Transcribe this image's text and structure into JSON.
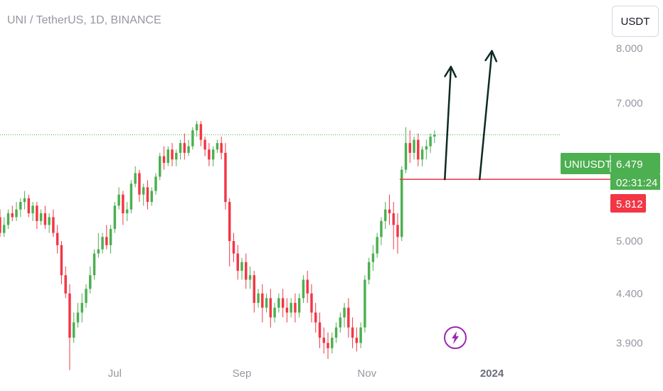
{
  "header": {
    "title": "UNI / TetherUS, 1D, BINANCE"
  },
  "toolbar": {
    "currency_label": "USDT"
  },
  "price_tag": {
    "symbol": "UNIUSDT",
    "price": "6.479",
    "countdown": "02:31:24",
    "level": "5.812"
  },
  "colors": {
    "up": "#4caf50",
    "down": "#f23645",
    "arrow": "#0d2a24",
    "grid_line": "#4caf50",
    "level_line": "#f23645",
    "bolt": "#9c27b0"
  },
  "icons": {
    "event_marker": "lightning-bolt-icon"
  },
  "chart_data": {
    "type": "candlestick",
    "title": "UNI / TetherUS, 1D, BINANCE",
    "symbol": "UNIUSDT",
    "scale": "log",
    "ylim": [
      3.75,
      9.0
    ],
    "y_ticks": [
      {
        "value": 3.9,
        "label": "3.900"
      },
      {
        "value": 4.4,
        "label": "4.400"
      },
      {
        "value": 5.0,
        "label": "5.000"
      },
      {
        "value": 7.0,
        "label": "7.000"
      },
      {
        "value": 8.0,
        "label": "8.000"
      }
    ],
    "x_ticks": [
      {
        "date": "2023-07-01",
        "label": "Jul",
        "bold": false
      },
      {
        "date": "2023-09-01",
        "label": "Sep",
        "bold": false
      },
      {
        "date": "2023-11-01",
        "label": "Nov",
        "bold": false
      },
      {
        "date": "2024-01-01",
        "label": "2024",
        "bold": true
      }
    ],
    "xlim": [
      "2023-05-06",
      "2024-02-25"
    ],
    "last_price": 6.479,
    "horizontal_level": {
      "value": 5.812,
      "from": "2023-11-17",
      "to": "2024-02-25"
    },
    "arrows": [
      {
        "from": [
          "2023-12-09",
          5.812
        ],
        "to": [
          "2023-12-12",
          7.65
        ]
      },
      {
        "from": [
          "2023-12-26",
          5.812
        ],
        "to": [
          "2024-01-01",
          7.95
        ]
      }
    ],
    "event_marker_date": "2023-11-23",
    "candles": [
      [
        "2023-05-06",
        5.3,
        5.4,
        5.1,
        5.05
      ],
      [
        "2023-05-08",
        5.1,
        5.3,
        5.2,
        5.05
      ],
      [
        "2023-05-10",
        5.2,
        5.4,
        5.35,
        5.15
      ],
      [
        "2023-05-12",
        5.35,
        5.45,
        5.3,
        5.25
      ],
      [
        "2023-05-14",
        5.3,
        5.5,
        5.4,
        5.25
      ],
      [
        "2023-05-16",
        5.4,
        5.55,
        5.5,
        5.3
      ],
      [
        "2023-05-18",
        5.5,
        5.65,
        5.55,
        5.4
      ],
      [
        "2023-05-20",
        5.55,
        5.6,
        5.35,
        5.3
      ],
      [
        "2023-05-22",
        5.35,
        5.5,
        5.45,
        5.25
      ],
      [
        "2023-05-24",
        5.45,
        5.5,
        5.25,
        5.15
      ],
      [
        "2023-05-26",
        5.25,
        5.4,
        5.35,
        5.2
      ],
      [
        "2023-05-28",
        5.35,
        5.45,
        5.2,
        5.15
      ],
      [
        "2023-05-30",
        5.2,
        5.35,
        5.3,
        5.1
      ],
      [
        "2023-06-01",
        5.3,
        5.4,
        5.1,
        5.05
      ],
      [
        "2023-06-03",
        5.1,
        5.2,
        4.95,
        4.85
      ],
      [
        "2023-06-05",
        4.95,
        5.0,
        4.6,
        4.5
      ],
      [
        "2023-06-07",
        4.6,
        4.7,
        4.4,
        4.35
      ],
      [
        "2023-06-09",
        4.4,
        4.5,
        3.95,
        3.65
      ],
      [
        "2023-06-11",
        3.95,
        4.2,
        4.1,
        3.9
      ],
      [
        "2023-06-13",
        4.1,
        4.3,
        4.2,
        4.05
      ],
      [
        "2023-06-15",
        4.2,
        4.4,
        4.3,
        4.1
      ],
      [
        "2023-06-17",
        4.3,
        4.5,
        4.45,
        4.25
      ],
      [
        "2023-06-19",
        4.45,
        4.7,
        4.6,
        4.4
      ],
      [
        "2023-06-21",
        4.6,
        4.9,
        4.85,
        4.55
      ],
      [
        "2023-06-23",
        4.85,
        5.1,
        4.9,
        4.8
      ],
      [
        "2023-06-25",
        4.9,
        5.1,
        5.05,
        4.85
      ],
      [
        "2023-06-27",
        5.05,
        5.2,
        4.95,
        4.9
      ],
      [
        "2023-06-29",
        4.95,
        5.2,
        5.15,
        4.85
      ],
      [
        "2023-07-01",
        5.15,
        5.5,
        5.45,
        5.1
      ],
      [
        "2023-07-03",
        5.45,
        5.7,
        5.6,
        5.4
      ],
      [
        "2023-07-05",
        5.6,
        5.65,
        5.35,
        5.2
      ],
      [
        "2023-07-07",
        5.35,
        5.5,
        5.4,
        5.25
      ],
      [
        "2023-07-09",
        5.4,
        5.8,
        5.75,
        5.35
      ],
      [
        "2023-07-11",
        5.75,
        6.0,
        5.9,
        5.7
      ],
      [
        "2023-07-13",
        5.9,
        5.95,
        5.6,
        5.5
      ],
      [
        "2023-07-15",
        5.6,
        5.75,
        5.7,
        5.45
      ],
      [
        "2023-07-17",
        5.7,
        5.8,
        5.5,
        5.4
      ],
      [
        "2023-07-19",
        5.5,
        5.7,
        5.65,
        5.45
      ],
      [
        "2023-07-21",
        5.65,
        5.9,
        5.85,
        5.6
      ],
      [
        "2023-07-23",
        5.85,
        6.2,
        6.15,
        5.8
      ],
      [
        "2023-07-25",
        6.15,
        6.3,
        6.05,
        5.95
      ],
      [
        "2023-07-27",
        6.05,
        6.3,
        6.25,
        6.0
      ],
      [
        "2023-07-29",
        6.25,
        6.35,
        6.1,
        6.0
      ],
      [
        "2023-07-31",
        6.1,
        6.25,
        6.2,
        6.0
      ],
      [
        "2023-08-02",
        6.2,
        6.4,
        6.35,
        6.1
      ],
      [
        "2023-08-04",
        6.35,
        6.5,
        6.2,
        6.1
      ],
      [
        "2023-08-06",
        6.2,
        6.4,
        6.3,
        6.15
      ],
      [
        "2023-08-08",
        6.3,
        6.6,
        6.55,
        6.25
      ],
      [
        "2023-08-10",
        6.55,
        6.7,
        6.65,
        6.45
      ],
      [
        "2023-08-12",
        6.65,
        6.7,
        6.4,
        6.3
      ],
      [
        "2023-08-14",
        6.4,
        6.45,
        6.25,
        6.15
      ],
      [
        "2023-08-16",
        6.25,
        6.35,
        6.1,
        6.0
      ],
      [
        "2023-08-18",
        6.1,
        6.3,
        6.25,
        6.0
      ],
      [
        "2023-08-20",
        6.25,
        6.4,
        6.35,
        6.2
      ],
      [
        "2023-08-22",
        6.35,
        6.45,
        6.2,
        6.1
      ],
      [
        "2023-08-24",
        6.2,
        6.35,
        5.5,
        5.4
      ],
      [
        "2023-08-26",
        5.5,
        5.55,
        5.0,
        4.7
      ],
      [
        "2023-08-28",
        5.0,
        5.1,
        4.85,
        4.75
      ],
      [
        "2023-08-30",
        4.85,
        4.95,
        4.65,
        4.55
      ],
      [
        "2023-09-01",
        4.65,
        4.8,
        4.75,
        4.55
      ],
      [
        "2023-09-03",
        4.75,
        4.85,
        4.55,
        4.45
      ],
      [
        "2023-09-05",
        4.55,
        4.7,
        4.6,
        4.45
      ],
      [
        "2023-09-07",
        4.6,
        4.65,
        4.3,
        4.2
      ],
      [
        "2023-09-09",
        4.3,
        4.45,
        4.4,
        4.25
      ],
      [
        "2023-09-11",
        4.4,
        4.5,
        4.25,
        4.1
      ],
      [
        "2023-09-13",
        4.25,
        4.4,
        4.35,
        4.2
      ],
      [
        "2023-09-15",
        4.35,
        4.45,
        4.15,
        4.05
      ],
      [
        "2023-09-17",
        4.15,
        4.3,
        4.25,
        4.1
      ],
      [
        "2023-09-19",
        4.25,
        4.4,
        4.35,
        4.2
      ],
      [
        "2023-09-21",
        4.35,
        4.45,
        4.25,
        4.15
      ],
      [
        "2023-09-23",
        4.25,
        4.35,
        4.2,
        4.1
      ],
      [
        "2023-09-25",
        4.2,
        4.35,
        4.3,
        4.15
      ],
      [
        "2023-09-27",
        4.3,
        4.4,
        4.2,
        4.1
      ],
      [
        "2023-09-29",
        4.2,
        4.4,
        4.35,
        4.15
      ],
      [
        "2023-10-01",
        4.35,
        4.6,
        4.55,
        4.3
      ],
      [
        "2023-10-03",
        4.55,
        4.65,
        4.4,
        4.3
      ],
      [
        "2023-10-05",
        4.4,
        4.5,
        4.2,
        4.1
      ],
      [
        "2023-10-07",
        4.2,
        4.3,
        4.1,
        4.0
      ],
      [
        "2023-10-09",
        4.1,
        4.2,
        3.95,
        3.85
      ],
      [
        "2023-10-11",
        3.95,
        4.05,
        3.9,
        3.8
      ],
      [
        "2023-10-13",
        3.9,
        4.0,
        3.85,
        3.75
      ],
      [
        "2023-10-15",
        3.85,
        4.0,
        3.95,
        3.8
      ],
      [
        "2023-10-17",
        3.95,
        4.1,
        4.05,
        3.9
      ],
      [
        "2023-10-19",
        4.05,
        4.2,
        4.15,
        4.0
      ],
      [
        "2023-10-21",
        4.15,
        4.3,
        4.25,
        4.05
      ],
      [
        "2023-10-23",
        4.25,
        4.35,
        4.05,
        3.95
      ],
      [
        "2023-10-25",
        4.05,
        4.15,
        3.95,
        3.85
      ],
      [
        "2023-10-27",
        3.95,
        4.05,
        3.9,
        3.82
      ],
      [
        "2023-10-29",
        3.9,
        4.1,
        4.05,
        3.85
      ],
      [
        "2023-10-31",
        4.05,
        4.6,
        4.55,
        4.0
      ],
      [
        "2023-11-02",
        4.55,
        4.8,
        4.75,
        4.5
      ],
      [
        "2023-11-04",
        4.75,
        4.95,
        4.85,
        4.65
      ],
      [
        "2023-11-06",
        4.85,
        5.1,
        5.05,
        4.8
      ],
      [
        "2023-11-08",
        5.05,
        5.3,
        5.25,
        4.95
      ],
      [
        "2023-11-10",
        5.25,
        5.5,
        5.4,
        5.15
      ],
      [
        "2023-11-12",
        5.4,
        5.6,
        5.35,
        5.2
      ],
      [
        "2023-11-14",
        5.35,
        5.5,
        5.2,
        4.9
      ],
      [
        "2023-11-16",
        5.2,
        5.35,
        5.05,
        4.85
      ],
      [
        "2023-11-18",
        5.05,
        6.0,
        5.95,
        5.0
      ],
      [
        "2023-11-20",
        5.95,
        6.6,
        6.35,
        5.9
      ],
      [
        "2023-11-22",
        6.35,
        6.55,
        6.2,
        6.05
      ],
      [
        "2023-11-24",
        6.2,
        6.45,
        6.4,
        6.1
      ],
      [
        "2023-11-26",
        6.4,
        6.5,
        6.1,
        6.0
      ],
      [
        "2023-11-28",
        6.1,
        6.3,
        6.25,
        6.0
      ],
      [
        "2023-11-30",
        6.25,
        6.4,
        6.3,
        6.1
      ],
      [
        "2023-12-02",
        6.3,
        6.5,
        6.45,
        6.2
      ],
      [
        "2023-12-04",
        6.45,
        6.55,
        6.479,
        6.35
      ]
    ]
  }
}
